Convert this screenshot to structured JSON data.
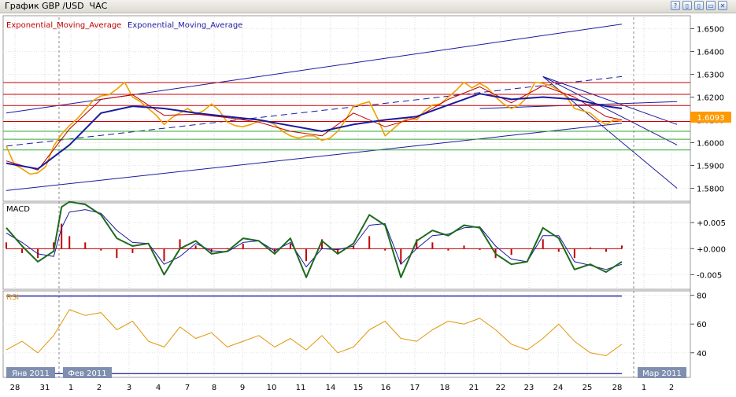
{
  "window": {
    "title": "График GBP /USD  ЧАС",
    "buttons": [
      "?",
      "▯",
      "▯",
      "▭",
      "✕"
    ]
  },
  "legend": {
    "ema_red": "Exponential_Moving_Average",
    "ema_blue": "Exponential_Moving_Average"
  },
  "colors": {
    "price": "#f0a000",
    "ema_red": "#c00000",
    "ema_blue": "#1a1aa0",
    "macd": "#1e6b1e",
    "signal": "#1a1aa0",
    "hist": "#c00000",
    "rsi": "#e0960a",
    "hline_red": "#cc0000",
    "hline_green": "#33aa33",
    "price_box": "#ff9900"
  },
  "chart_data": [
    {
      "type": "line",
      "pane": "price",
      "ylim": [
        1.575,
        1.655
      ],
      "yticks": [
        "1.6500",
        "1.6400",
        "1.6300",
        "1.6200",
        "1.6100",
        "1.6000",
        "1.5900",
        "1.5800"
      ],
      "current_price": "1.6093",
      "horizontal_lines": {
        "red": [
          1.6264,
          1.6212,
          1.6163,
          1.6093
        ],
        "green": [
          1.605,
          1.6015,
          1.5968
        ]
      },
      "series_price": {
        "x": [
          0,
          1,
          2,
          3,
          4,
          5,
          6,
          7,
          8,
          9,
          10,
          11,
          12,
          13,
          14,
          15,
          16,
          17,
          18,
          19,
          20,
          21,
          22,
          23,
          24,
          25,
          26,
          27,
          28,
          29,
          30,
          31,
          32,
          33,
          34,
          35,
          36,
          37,
          38,
          39,
          40,
          41,
          42,
          43,
          44,
          45,
          46,
          47,
          48,
          49,
          50,
          51,
          52,
          53,
          54,
          55,
          56,
          57,
          58,
          59,
          60,
          61,
          62,
          63,
          64,
          65,
          66,
          67,
          68,
          69,
          70,
          71,
          72,
          73,
          74,
          75,
          76,
          77,
          78
        ],
        "values": [
          1.5985,
          1.5905,
          1.5885,
          1.5862,
          1.5868,
          1.5895,
          1.5985,
          1.6038,
          1.6075,
          1.6105,
          1.6145,
          1.6185,
          1.6205,
          1.621,
          1.6235,
          1.6265,
          1.62,
          1.618,
          1.615,
          1.612,
          1.608,
          1.611,
          1.613,
          1.615,
          1.6125,
          1.614,
          1.617,
          1.614,
          1.609,
          1.6075,
          1.607,
          1.608,
          1.6095,
          1.6095,
          1.608,
          1.605,
          1.603,
          1.602,
          1.603,
          1.603,
          1.601,
          1.602,
          1.605,
          1.61,
          1.616,
          1.617,
          1.618,
          1.611,
          1.603,
          1.606,
          1.609,
          1.611,
          1.61,
          1.614,
          1.6165,
          1.617,
          1.62,
          1.623,
          1.6265,
          1.624,
          1.626,
          1.624,
          1.62,
          1.617,
          1.615,
          1.6165,
          1.62,
          1.6265,
          1.626,
          1.625,
          1.623,
          1.62,
          1.615,
          1.614,
          1.613,
          1.61,
          1.608,
          1.61,
          1.6093
        ]
      },
      "series_ema_red": {
        "x": [
          0,
          4,
          8,
          12,
          16,
          20,
          24,
          28,
          32,
          36,
          40,
          44,
          48,
          52,
          56,
          60,
          64,
          68,
          72,
          76,
          78
        ],
        "values": [
          1.592,
          1.588,
          1.606,
          1.619,
          1.621,
          1.612,
          1.6125,
          1.611,
          1.609,
          1.605,
          1.603,
          1.613,
          1.607,
          1.611,
          1.619,
          1.6245,
          1.6175,
          1.625,
          1.62,
          1.6115,
          1.61
        ]
      },
      "series_ema_blue": {
        "x": [
          0,
          4,
          8,
          12,
          16,
          20,
          24,
          28,
          32,
          36,
          40,
          44,
          48,
          52,
          56,
          60,
          64,
          68,
          72,
          76,
          78
        ],
        "values": [
          1.591,
          1.5885,
          1.599,
          1.613,
          1.616,
          1.615,
          1.613,
          1.6115,
          1.61,
          1.6075,
          1.605,
          1.608,
          1.61,
          1.6115,
          1.6165,
          1.6215,
          1.619,
          1.62,
          1.619,
          1.616,
          1.615
        ]
      }
    },
    {
      "type": "line",
      "pane": "macd",
      "title": "MACD",
      "ylim": [
        -0.0075,
        0.0085
      ],
      "yticks": [
        "+0.005",
        "+0.000",
        "-0.005"
      ],
      "series_macd": {
        "x": [
          0,
          2,
          4,
          6,
          7,
          8,
          10,
          12,
          14,
          16,
          18,
          20,
          22,
          24,
          26,
          28,
          30,
          32,
          34,
          36,
          38,
          40,
          42,
          44,
          46,
          48,
          50,
          52,
          54,
          56,
          58,
          60,
          62,
          64,
          66,
          68,
          70,
          72,
          74,
          76,
          78
        ],
        "values": [
          0.004,
          0.0005,
          -0.0025,
          -0.0005,
          0.008,
          0.009,
          0.0085,
          0.0065,
          0.002,
          0.0005,
          0.001,
          -0.005,
          0.0,
          0.0015,
          -0.001,
          -0.0005,
          0.002,
          0.0015,
          -0.001,
          0.002,
          -0.0055,
          0.0015,
          -0.001,
          0.001,
          0.0065,
          0.0045,
          -0.0055,
          0.0015,
          0.0035,
          0.0025,
          0.0045,
          0.004,
          -0.001,
          -0.003,
          -0.0025,
          0.004,
          0.002,
          -0.004,
          -0.003,
          -0.0045,
          -0.0025
        ]
      },
      "series_signal": {
        "x": [
          0,
          2,
          4,
          6,
          7,
          8,
          10,
          12,
          14,
          16,
          18,
          20,
          22,
          24,
          26,
          28,
          30,
          32,
          34,
          36,
          38,
          40,
          42,
          44,
          46,
          48,
          50,
          52,
          54,
          56,
          58,
          60,
          62,
          64,
          66,
          68,
          70,
          72,
          74,
          76,
          78
        ],
        "values": [
          0.003,
          0.0012,
          -0.001,
          -0.0015,
          0.004,
          0.007,
          0.0075,
          0.0068,
          0.0035,
          0.0012,
          0.001,
          -0.003,
          -0.0015,
          0.001,
          -0.0004,
          -0.0006,
          0.0012,
          0.0015,
          -0.0004,
          0.0012,
          -0.0035,
          0.0,
          -0.0002,
          0.0005,
          0.0045,
          0.0048,
          -0.003,
          0.0,
          0.0025,
          0.0028,
          0.004,
          0.0042,
          0.0005,
          -0.002,
          -0.0025,
          0.0025,
          0.0025,
          -0.0025,
          -0.0032,
          -0.004,
          -0.003
        ]
      }
    },
    {
      "type": "line",
      "pane": "rsi",
      "title": "RSI",
      "ylim": [
        24,
        82
      ],
      "yticks": [
        "80",
        "60",
        "40"
      ],
      "series_rsi": {
        "x": [
          0,
          2,
          4,
          6,
          8,
          10,
          12,
          14,
          16,
          18,
          20,
          22,
          24,
          26,
          28,
          30,
          32,
          34,
          36,
          38,
          40,
          42,
          44,
          46,
          48,
          50,
          52,
          54,
          56,
          58,
          60,
          62,
          64,
          66,
          68,
          70,
          72,
          74,
          76,
          78
        ],
        "values": [
          42,
          48,
          40,
          52,
          70,
          66,
          68,
          56,
          62,
          48,
          44,
          58,
          50,
          54,
          44,
          48,
          52,
          44,
          50,
          42,
          52,
          40,
          44,
          56,
          62,
          50,
          48,
          56,
          62,
          60,
          64,
          56,
          46,
          42,
          50,
          60,
          48,
          40,
          38,
          46
        ]
      }
    }
  ],
  "xaxis": {
    "days": [
      "28",
      "31",
      "1",
      "2",
      "3",
      "4",
      "7",
      "8",
      "9",
      "10",
      "11",
      "14",
      "15",
      "16",
      "17",
      "18",
      "21",
      "22",
      "23",
      "24",
      "25",
      "28",
      "1",
      "2"
    ],
    "months": [
      "Янв 2011",
      "Фев 2011",
      "Мар 2011"
    ]
  }
}
